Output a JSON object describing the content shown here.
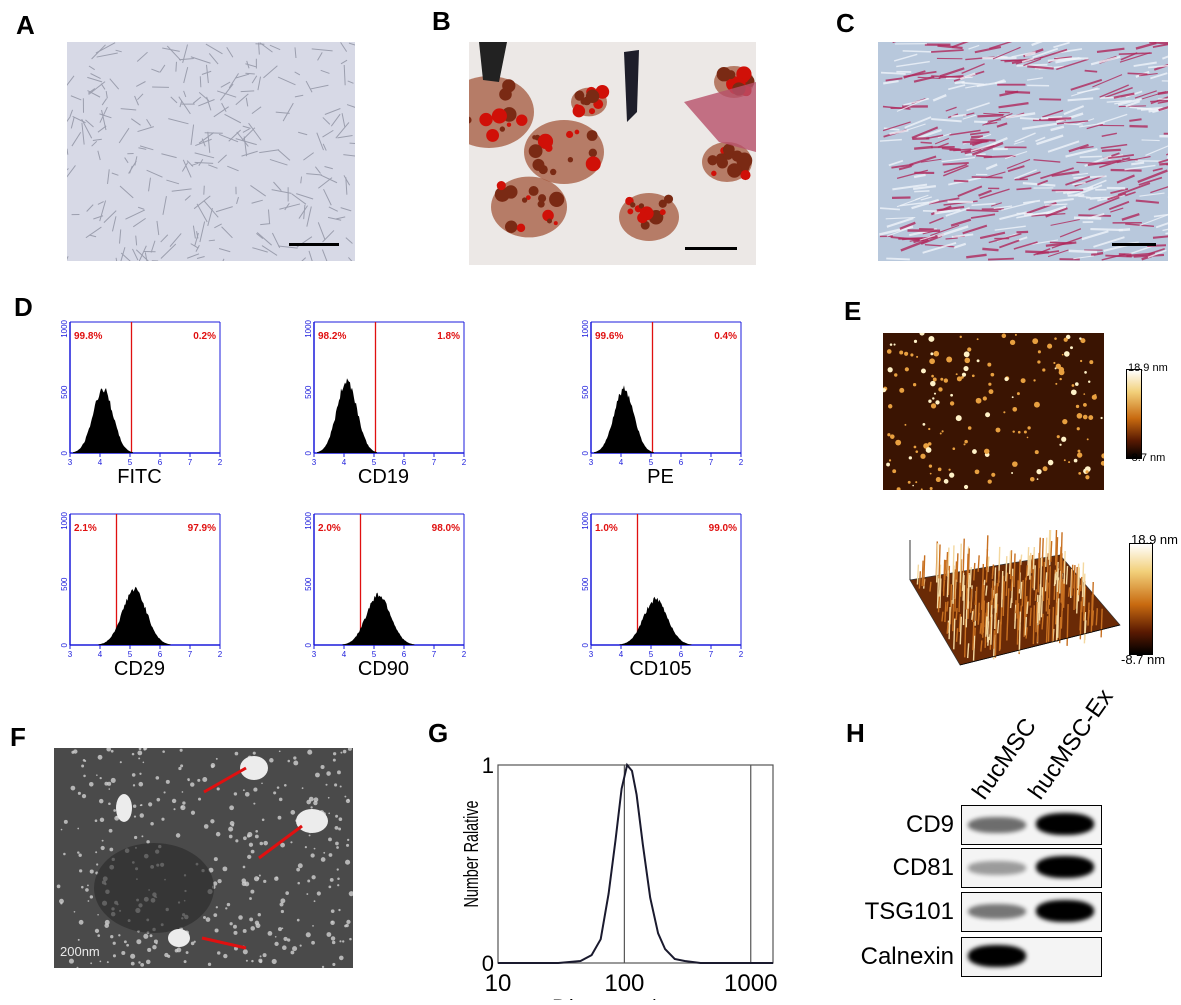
{
  "panels": {
    "A": {
      "letter": "A"
    },
    "B": {
      "letter": "B"
    },
    "C": {
      "letter": "C"
    },
    "D": {
      "letter": "D"
    },
    "E": {
      "letter": "E"
    },
    "F": {
      "letter": "F"
    },
    "G": {
      "letter": "G"
    },
    "H": {
      "letter": "H"
    }
  },
  "flow": {
    "axis_ticks_x": [
      "3",
      "4",
      "5",
      "6",
      "7",
      "2"
    ],
    "plots": [
      {
        "id": "fitc",
        "label": "FITC",
        "left_pct": "99.8%",
        "right_pct": "0.2%",
        "peak_shift": 0
      },
      {
        "id": "cd19",
        "label": "CD19",
        "left_pct": "98.2%",
        "right_pct": "1.8%",
        "peak_shift": 0
      },
      {
        "id": "pe",
        "label": "PE",
        "left_pct": "99.6%",
        "right_pct": "0.4%",
        "peak_shift": 0
      },
      {
        "id": "cd29",
        "label": "CD29",
        "left_pct": "2.1%",
        "right_pct": "97.9%",
        "peak_shift": 1
      },
      {
        "id": "cd90",
        "label": "CD90",
        "left_pct": "2.0%",
        "right_pct": "98.0%",
        "peak_shift": 1
      },
      {
        "id": "cd105",
        "label": "CD105",
        "left_pct": "1.0%",
        "right_pct": "99.0%",
        "peak_shift": 1
      }
    ]
  },
  "afm": {
    "top_scale_max": "18.9 nm",
    "top_scale_min": "-8.7 nm",
    "bottom_scale_max": "18.9 nm",
    "bottom_scale_min": "-8.7 nm"
  },
  "tem": {
    "scale_text": "200nm"
  },
  "chart_data": {
    "type": "line",
    "title": "",
    "xlabel": "Diameter/nm",
    "ylabel": "Number Ralative",
    "x_scale": "log",
    "xlim": [
      10,
      1500
    ],
    "ylim": [
      0,
      1
    ],
    "x_ticks": [
      "10",
      "100",
      "1000"
    ],
    "y_ticks": [
      "0",
      "1"
    ],
    "series": [
      {
        "x": [
          10,
          30,
          45,
          55,
          65,
          75,
          85,
          95,
          105,
          115,
          125,
          140,
          160,
          185,
          210,
          250,
          300,
          400,
          1000,
          1500
        ],
        "y": [
          0,
          0,
          0.01,
          0.04,
          0.12,
          0.35,
          0.62,
          0.88,
          1.0,
          0.97,
          0.85,
          0.6,
          0.33,
          0.15,
          0.07,
          0.02,
          0.01,
          0,
          0,
          0
        ]
      }
    ]
  },
  "western": {
    "lanes": [
      "hucMSC",
      "hucMSC-Ex"
    ],
    "rows": [
      {
        "label": "CD9",
        "lane1": 0.4,
        "lane2": 1.0
      },
      {
        "label": "CD81",
        "lane1": 0.15,
        "lane2": 1.0
      },
      {
        "label": "TSG101",
        "lane1": 0.35,
        "lane2": 1.0
      },
      {
        "label": "Calnexin",
        "lane1": 1.0,
        "lane2": 0.0
      }
    ]
  }
}
